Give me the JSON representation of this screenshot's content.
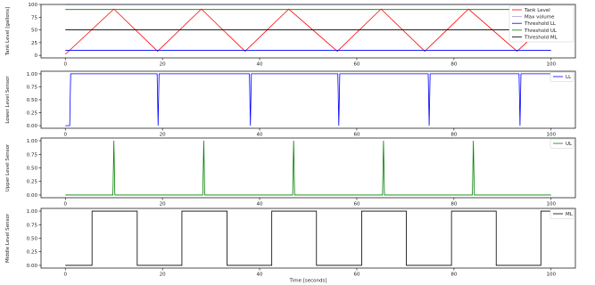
{
  "chart_data": [
    {
      "type": "line",
      "ylabel": "Tank Level [gallons]",
      "xlabel": "",
      "xlim": [
        -5,
        105
      ],
      "ylim": [
        -5,
        100
      ],
      "xticks": [
        "0",
        "20",
        "40",
        "60",
        "80",
        "100"
      ],
      "xtick_values": [
        0,
        20,
        40,
        60,
        80,
        100
      ],
      "yticks": [
        "0",
        "25",
        "50",
        "75",
        "100"
      ],
      "ytick_values": [
        0,
        25,
        50,
        75,
        100
      ],
      "legend": "top-right",
      "series": [
        {
          "name": "Tank Level",
          "color": "#ff0000",
          "x": [
            0,
            10,
            19,
            28,
            37,
            46,
            56,
            65,
            74,
            83,
            93,
            100
          ],
          "y": [
            2,
            91,
            8,
            91,
            8,
            91,
            8,
            91,
            8,
            91,
            8,
            70
          ]
        },
        {
          "name": "Max volume",
          "color": "#b0a0e0",
          "x": [
            0,
            100
          ],
          "y": [
            100,
            100
          ]
        },
        {
          "name": "Threshold LL",
          "color": "#0000ff",
          "x": [
            0,
            100
          ],
          "y": [
            10,
            10
          ]
        },
        {
          "name": "Threshold UL",
          "color": "#008000",
          "x": [
            0,
            100
          ],
          "y": [
            90,
            90
          ]
        },
        {
          "name": "Threshold ML",
          "color": "#000000",
          "x": [
            0,
            100
          ],
          "y": [
            50,
            50
          ]
        }
      ]
    },
    {
      "type": "line",
      "ylabel": "Lower Level Sensor",
      "xlabel": "",
      "xlim": [
        -5,
        105
      ],
      "ylim": [
        -0.05,
        1.05
      ],
      "xticks": [
        "0",
        "20",
        "40",
        "60",
        "80",
        "100"
      ],
      "xtick_values": [
        0,
        20,
        40,
        60,
        80,
        100
      ],
      "yticks": [
        "0.00",
        "0.25",
        "0.50",
        "0.75",
        "1.00"
      ],
      "ytick_values": [
        0,
        0.25,
        0.5,
        0.75,
        1.0
      ],
      "legend": "top-right",
      "series": [
        {
          "name": "LL",
          "color": "#0000ff",
          "x": [
            0,
            0.9,
            1.1,
            18.9,
            19.1,
            19.3,
            37.9,
            38.1,
            38.3,
            56.1,
            56.3,
            56.5,
            74.7,
            74.9,
            75.1,
            93.4,
            93.6,
            93.8,
            100
          ],
          "y": [
            0,
            0,
            1,
            1,
            0,
            1,
            1,
            0,
            1,
            1,
            0,
            1,
            1,
            0,
            1,
            1,
            0,
            1,
            1
          ]
        }
      ]
    },
    {
      "type": "line",
      "ylabel": "Upper Level Sensor",
      "xlabel": "",
      "xlim": [
        -5,
        105
      ],
      "ylim": [
        -0.05,
        1.05
      ],
      "xticks": [
        "0",
        "20",
        "40",
        "60",
        "80",
        "100"
      ],
      "xtick_values": [
        0,
        20,
        40,
        60,
        80,
        100
      ],
      "yticks": [
        "0.00",
        "0.25",
        "0.50",
        "0.75",
        "1.00"
      ],
      "ytick_values": [
        0,
        0.25,
        0.5,
        0.75,
        1.0
      ],
      "legend": "top-right",
      "series": [
        {
          "name": "UL",
          "color": "#008000",
          "x": [
            0,
            9.8,
            10.0,
            10.2,
            28.3,
            28.5,
            28.7,
            46.8,
            47.0,
            47.2,
            65.3,
            65.5,
            65.7,
            83.8,
            84.0,
            84.2,
            100
          ],
          "y": [
            0,
            0,
            1,
            0,
            0,
            1,
            0,
            0,
            1,
            0,
            0,
            1,
            0,
            0,
            1,
            0,
            0
          ]
        }
      ]
    },
    {
      "type": "line",
      "ylabel": "Middle Level Sensor",
      "xlabel": "Time [seconds]",
      "xlim": [
        -5,
        105
      ],
      "ylim": [
        -0.05,
        1.05
      ],
      "xticks": [
        "0",
        "20",
        "40",
        "60",
        "80",
        "100"
      ],
      "xtick_values": [
        0,
        20,
        40,
        60,
        80,
        100
      ],
      "yticks": [
        "0.00",
        "0.25",
        "0.50",
        "0.75",
        "1.00"
      ],
      "ytick_values": [
        0,
        0.25,
        0.5,
        0.75,
        1.0
      ],
      "legend": "top-right",
      "series": [
        {
          "name": "ML",
          "color": "#000000",
          "x": [
            0,
            5.5,
            5.5,
            14.8,
            14.8,
            24.0,
            24.0,
            33.3,
            33.3,
            42.5,
            42.5,
            51.7,
            51.7,
            61.0,
            61.0,
            70.2,
            70.2,
            79.5,
            79.5,
            88.7,
            88.7,
            97.9,
            97.9,
            100
          ],
          "y": [
            0,
            0,
            1,
            1,
            0,
            0,
            1,
            1,
            0,
            0,
            1,
            1,
            0,
            0,
            1,
            1,
            0,
            0,
            1,
            1,
            0,
            0,
            1,
            1
          ]
        }
      ]
    }
  ]
}
